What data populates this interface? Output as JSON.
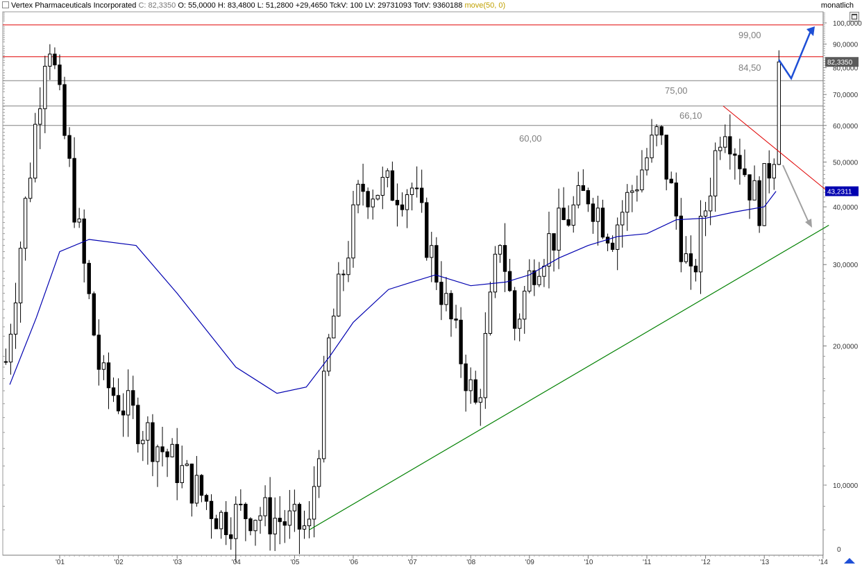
{
  "header": {
    "name": "Vertex Pharmaceuticals Incorporated",
    "close_label": "C:",
    "close": "82,3350",
    "quote": "O: 55,0000  H: 83,4800  L: 51,2800  +29,4650  TckV: 100  LV: 29731093  TotV: 9360188",
    "indicator": "move(50, 0)",
    "period": "monatlich"
  },
  "chart_data": {
    "type": "candlestick",
    "scale": "log",
    "ylim": [
      7,
      110
    ],
    "y_ticks": [
      "100,0000",
      "90,0000",
      "80,0000",
      "70,0000",
      "60,0000",
      "50,0000",
      "40,0000",
      "30,0000",
      "20,0000",
      "10,0000"
    ],
    "y_tick_values": [
      100,
      90,
      80,
      70,
      60,
      50,
      40,
      30,
      20,
      10
    ],
    "y_zero_label": "0",
    "x_ticks": [
      "'01",
      "'02",
      "'03",
      "'04",
      "'05",
      "'06",
      "'07",
      "'08",
      "'09",
      "'10",
      "'11",
      "'12",
      "'13",
      "'14"
    ],
    "x_tick_years": [
      2001,
      2002,
      2003,
      2004,
      2005,
      2006,
      2007,
      2008,
      2009,
      2010,
      2011,
      2012,
      2013,
      2014
    ],
    "start": 2000.083,
    "last_price_label": "82,3350",
    "last_price": 82.335,
    "ma_label": "43,2311",
    "ma_value": 43.2311,
    "levels": [
      {
        "value": 99.0,
        "label": "99,00",
        "color": "#e00000"
      },
      {
        "value": 84.5,
        "label": "84,50",
        "color": "#e00000"
      },
      {
        "value": 75.0,
        "label": "75,00",
        "color": "#808080"
      },
      {
        "value": 66.1,
        "label": "66,10",
        "color": "#808080"
      },
      {
        "value": 60.0,
        "label": "60,00",
        "color": "#808080"
      }
    ],
    "key_points": [
      {
        "t": 2000.083,
        "price": 18.5
      },
      {
        "t": 2000.75,
        "price": 88
      },
      {
        "t": 2000.8,
        "price": 98
      },
      {
        "t": 2001.7,
        "price": 17
      },
      {
        "t": 2003.75,
        "price": 8.5
      },
      {
        "t": 2004.3,
        "price": 8.8
      },
      {
        "t": 2005.25,
        "price": 8.0
      },
      {
        "t": 2005.6,
        "price": 21
      },
      {
        "t": 2006.12,
        "price": 44
      },
      {
        "t": 2007.0,
        "price": 44
      },
      {
        "t": 2008.1,
        "price": 14.5
      },
      {
        "t": 2008.5,
        "price": 35
      },
      {
        "t": 2008.75,
        "price": 22
      },
      {
        "t": 2009.1,
        "price": 31
      },
      {
        "t": 2010.0,
        "price": 43
      },
      {
        "t": 2010.4,
        "price": 35
      },
      {
        "t": 2011.2,
        "price": 58
      },
      {
        "t": 2011.75,
        "price": 27
      },
      {
        "t": 2012.3,
        "price": 64
      },
      {
        "t": 2012.9,
        "price": 40
      },
      {
        "t": 2013.2,
        "price": 56
      },
      {
        "t": 2013.25,
        "price": 82.3
      }
    ],
    "ma_points": [
      {
        "t": 2000.15,
        "price": 16.5
      },
      {
        "t": 2000.6,
        "price": 23
      },
      {
        "t": 2001.0,
        "price": 32
      },
      {
        "t": 2001.5,
        "price": 34
      },
      {
        "t": 2002.3,
        "price": 33
      },
      {
        "t": 2003.0,
        "price": 26
      },
      {
        "t": 2004.0,
        "price": 18
      },
      {
        "t": 2004.7,
        "price": 15.8
      },
      {
        "t": 2005.2,
        "price": 16.3
      },
      {
        "t": 2005.6,
        "price": 19
      },
      {
        "t": 2006.0,
        "price": 22.5
      },
      {
        "t": 2006.6,
        "price": 26.5
      },
      {
        "t": 2007.0,
        "price": 27.5
      },
      {
        "t": 2007.4,
        "price": 28.5
      },
      {
        "t": 2008.0,
        "price": 27
      },
      {
        "t": 2008.6,
        "price": 27.5
      },
      {
        "t": 2009.0,
        "price": 28.5
      },
      {
        "t": 2009.5,
        "price": 31
      },
      {
        "t": 2010.0,
        "price": 33
      },
      {
        "t": 2010.5,
        "price": 34.5
      },
      {
        "t": 2011.0,
        "price": 35
      },
      {
        "t": 2011.5,
        "price": 37.5
      },
      {
        "t": 2012.0,
        "price": 37.8
      },
      {
        "t": 2012.5,
        "price": 39
      },
      {
        "t": 2013.0,
        "price": 40
      },
      {
        "t": 2013.2,
        "price": 43.23
      }
    ],
    "support_line": {
      "t1": 2005.25,
      "p1": 8.0,
      "t2": 2014.1,
      "p2": 36.5,
      "color": "#008000"
    },
    "resistance_line": {
      "t1": 2012.3,
      "p1": 66.1,
      "t2": 2014.1,
      "p2": 43,
      "color": "#e00000"
    },
    "ma_color": "#0000b0",
    "up_color": "#ffffff",
    "down_color": "#000000",
    "arrow_up_color": "#1e4fd6",
    "arrow_down_color": "#a0a0a0"
  }
}
